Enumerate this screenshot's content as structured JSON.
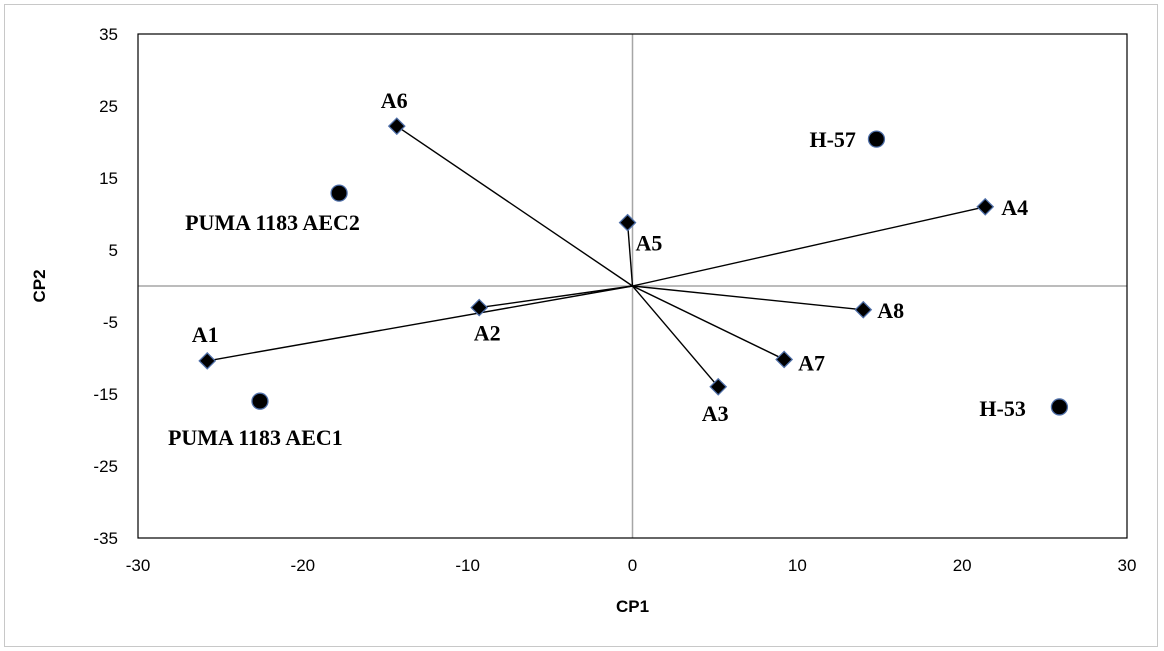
{
  "chart_data": {
    "type": "scatter",
    "title": "",
    "xlabel": "CP1",
    "ylabel": "CP2",
    "xlim": [
      -30,
      30
    ],
    "ylim": [
      -35,
      35
    ],
    "xticks": [
      -30,
      -20,
      -10,
      0,
      10,
      20,
      30
    ],
    "yticks": [
      35,
      25,
      15,
      5,
      -5,
      -15,
      -25,
      -35
    ],
    "grid": false,
    "legend": "none",
    "colors": {
      "marker_fill": "#000000",
      "marker_edge": "#4f6fa8",
      "vector_line": "#000000",
      "zero_axis": "#a6a6a6",
      "plot_border": "#000000"
    },
    "series": [
      {
        "marker": "diamond",
        "vectors_from_origin": true,
        "points": [
          {
            "label": "A1",
            "x": -25.8,
            "y": -10.4
          },
          {
            "label": "A2",
            "x": -9.3,
            "y": -3.0
          },
          {
            "label": "A3",
            "x": 5.2,
            "y": -14.0
          },
          {
            "label": "A4",
            "x": 21.4,
            "y": 11.0
          },
          {
            "label": "A5",
            "x": -0.3,
            "y": 8.8
          },
          {
            "label": "A6",
            "x": -14.3,
            "y": 22.2
          },
          {
            "label": "A7",
            "x": 9.2,
            "y": -10.2
          },
          {
            "label": "A8",
            "x": 14.0,
            "y": -3.3
          }
        ]
      },
      {
        "marker": "circle",
        "vectors_from_origin": false,
        "points": [
          {
            "label": "PUMA 1183 AEC2",
            "x": -17.8,
            "y": 12.9
          },
          {
            "label": "PUMA 1183 AEC1",
            "x": -22.6,
            "y": -16.0
          },
          {
            "label": "H-57",
            "x": 14.8,
            "y": 20.4
          },
          {
            "label": "H-53",
            "x": 25.9,
            "y": -16.8
          }
        ]
      }
    ]
  }
}
